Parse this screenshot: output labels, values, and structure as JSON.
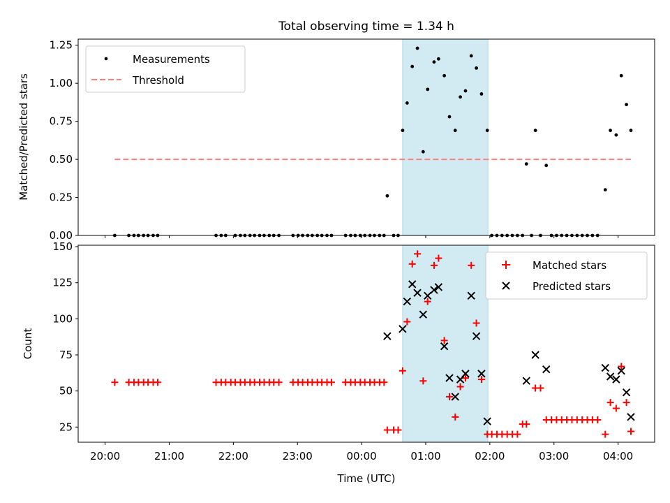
{
  "figure": {
    "title": "Total observing time = 1.34 h"
  },
  "colors": {
    "highlight": "#add8e6",
    "threshold": "#ff7f7f",
    "measurement": "#000000",
    "matched": "#ff0000",
    "predicted": "#000000"
  },
  "chart_data": [
    {
      "type": "scatter",
      "xlabel": "",
      "ylabel": "Matched/Predicted stars",
      "x_unit": "hours after 20:00 UTC",
      "xlim": [
        -0.42,
        8.57
      ],
      "ylim": [
        0,
        1.29
      ],
      "yticks": [
        0,
        0.25,
        0.5,
        0.75,
        1.0,
        1.25
      ],
      "ytick_labels": [
        "0.00",
        "0.25",
        "0.50",
        "0.75",
        "1.00",
        "1.25"
      ],
      "highlight_span": [
        4.64,
        5.97
      ],
      "legend": {
        "position": "upper-left",
        "entries": [
          "Measurements",
          "Threshold"
        ]
      },
      "threshold": {
        "name": "Threshold",
        "y": 0.5,
        "x_range": [
          0.15,
          8.2
        ]
      },
      "series": [
        {
          "name": "Measurements",
          "points": [
            [
              0.15,
              0
            ],
            [
              0.37,
              0
            ],
            [
              0.45,
              0
            ],
            [
              0.52,
              0
            ],
            [
              0.6,
              0
            ],
            [
              0.67,
              0
            ],
            [
              0.75,
              0
            ],
            [
              0.82,
              0
            ],
            [
              1.73,
              0
            ],
            [
              1.81,
              0
            ],
            [
              1.88,
              0
            ],
            [
              2.03,
              0
            ],
            [
              2.11,
              0
            ],
            [
              2.18,
              0
            ],
            [
              2.26,
              0
            ],
            [
              2.33,
              0
            ],
            [
              2.41,
              0
            ],
            [
              2.48,
              0
            ],
            [
              2.56,
              0
            ],
            [
              2.63,
              0
            ],
            [
              2.71,
              0
            ],
            [
              2.93,
              0
            ],
            [
              3.01,
              0
            ],
            [
              3.08,
              0
            ],
            [
              3.16,
              0
            ],
            [
              3.23,
              0
            ],
            [
              3.31,
              0
            ],
            [
              3.38,
              0
            ],
            [
              3.46,
              0
            ],
            [
              3.53,
              0
            ],
            [
              3.75,
              0
            ],
            [
              3.83,
              0
            ],
            [
              3.9,
              0
            ],
            [
              3.98,
              0
            ],
            [
              4.05,
              0
            ],
            [
              4.13,
              0
            ],
            [
              4.2,
              0
            ],
            [
              4.28,
              0
            ],
            [
              4.35,
              0
            ],
            [
              4.4,
              0.26
            ],
            [
              4.5,
              0
            ],
            [
              4.57,
              0
            ],
            [
              4.64,
              0.69
            ],
            [
              4.71,
              0.87
            ],
            [
              4.79,
              1.11
            ],
            [
              4.87,
              1.23
            ],
            [
              4.96,
              0.55
            ],
            [
              5.03,
              0.96
            ],
            [
              5.13,
              1.14
            ],
            [
              5.2,
              1.16
            ],
            [
              5.29,
              1.05
            ],
            [
              5.37,
              0.78
            ],
            [
              5.46,
              0.69
            ],
            [
              5.54,
              0.91
            ],
            [
              5.62,
              0.95
            ],
            [
              5.71,
              1.18
            ],
            [
              5.79,
              1.1
            ],
            [
              5.87,
              0.93
            ],
            [
              5.96,
              0.69
            ],
            [
              6.03,
              0
            ],
            [
              6.11,
              0
            ],
            [
              6.19,
              0
            ],
            [
              6.27,
              0
            ],
            [
              6.35,
              0
            ],
            [
              6.43,
              0
            ],
            [
              6.51,
              0
            ],
            [
              6.57,
              0.47
            ],
            [
              6.65,
              0
            ],
            [
              6.71,
              0.69
            ],
            [
              6.79,
              0
            ],
            [
              6.88,
              0.46
            ],
            [
              6.96,
              0
            ],
            [
              7.04,
              0
            ],
            [
              7.12,
              0
            ],
            [
              7.2,
              0
            ],
            [
              7.28,
              0
            ],
            [
              7.36,
              0
            ],
            [
              7.44,
              0
            ],
            [
              7.52,
              0
            ],
            [
              7.6,
              0
            ],
            [
              7.68,
              0
            ],
            [
              7.8,
              0.3
            ],
            [
              7.88,
              0.69
            ],
            [
              7.97,
              0.66
            ],
            [
              8.05,
              1.05
            ],
            [
              8.13,
              0.86
            ],
            [
              8.2,
              0.69
            ]
          ]
        }
      ]
    },
    {
      "type": "scatter",
      "xlabel": "Time (UTC)",
      "ylabel": "Count",
      "x_unit": "hours after 20:00 UTC",
      "xlim": [
        -0.42,
        8.57
      ],
      "ylim": [
        14.5,
        151
      ],
      "yticks": [
        25,
        50,
        75,
        100,
        125,
        150
      ],
      "ytick_labels": [
        "25",
        "50",
        "75",
        "100",
        "125",
        "150"
      ],
      "xticks": [
        0,
        1,
        2,
        3,
        4,
        5,
        6,
        7,
        8
      ],
      "xtick_labels": [
        "20:00",
        "21:00",
        "22:00",
        "23:00",
        "00:00",
        "01:00",
        "02:00",
        "03:00",
        "04:00"
      ],
      "highlight_span": [
        4.64,
        5.97
      ],
      "legend": {
        "position": "upper-right",
        "entries": [
          "Matched stars",
          "Predicted stars"
        ]
      },
      "series": [
        {
          "name": "Matched stars",
          "points": [
            [
              0.15,
              56
            ],
            [
              0.37,
              56
            ],
            [
              0.45,
              56
            ],
            [
              0.52,
              56
            ],
            [
              0.6,
              56
            ],
            [
              0.67,
              56
            ],
            [
              0.75,
              56
            ],
            [
              0.82,
              56
            ],
            [
              1.73,
              56
            ],
            [
              1.81,
              56
            ],
            [
              1.88,
              56
            ],
            [
              1.96,
              56
            ],
            [
              2.03,
              56
            ],
            [
              2.11,
              56
            ],
            [
              2.18,
              56
            ],
            [
              2.26,
              56
            ],
            [
              2.33,
              56
            ],
            [
              2.41,
              56
            ],
            [
              2.48,
              56
            ],
            [
              2.56,
              56
            ],
            [
              2.63,
              56
            ],
            [
              2.71,
              56
            ],
            [
              2.93,
              56
            ],
            [
              3.01,
              56
            ],
            [
              3.08,
              56
            ],
            [
              3.16,
              56
            ],
            [
              3.23,
              56
            ],
            [
              3.31,
              56
            ],
            [
              3.38,
              56
            ],
            [
              3.46,
              56
            ],
            [
              3.53,
              56
            ],
            [
              3.75,
              56
            ],
            [
              3.83,
              56
            ],
            [
              3.9,
              56
            ],
            [
              3.98,
              56
            ],
            [
              4.05,
              56
            ],
            [
              4.13,
              56
            ],
            [
              4.2,
              56
            ],
            [
              4.28,
              56
            ],
            [
              4.35,
              56
            ],
            [
              4.4,
              23
            ],
            [
              4.5,
              23
            ],
            [
              4.57,
              23
            ],
            [
              4.64,
              64
            ],
            [
              4.71,
              98
            ],
            [
              4.79,
              138
            ],
            [
              4.87,
              145
            ],
            [
              4.96,
              57
            ],
            [
              5.03,
              112
            ],
            [
              5.13,
              137
            ],
            [
              5.2,
              142
            ],
            [
              5.29,
              85
            ],
            [
              5.37,
              46
            ],
            [
              5.46,
              32
            ],
            [
              5.54,
              53
            ],
            [
              5.62,
              59
            ],
            [
              5.71,
              137
            ],
            [
              5.79,
              97
            ],
            [
              5.87,
              58
            ],
            [
              5.96,
              20
            ],
            [
              6.03,
              20
            ],
            [
              6.11,
              20
            ],
            [
              6.19,
              20
            ],
            [
              6.27,
              20
            ],
            [
              6.35,
              20
            ],
            [
              6.43,
              20
            ],
            [
              6.51,
              27
            ],
            [
              6.57,
              27
            ],
            [
              6.71,
              52
            ],
            [
              6.79,
              52
            ],
            [
              6.88,
              30
            ],
            [
              6.96,
              30
            ],
            [
              7.04,
              30
            ],
            [
              7.12,
              30
            ],
            [
              7.2,
              30
            ],
            [
              7.28,
              30
            ],
            [
              7.36,
              30
            ],
            [
              7.44,
              30
            ],
            [
              7.52,
              30
            ],
            [
              7.6,
              30
            ],
            [
              7.68,
              30
            ],
            [
              7.8,
              20
            ],
            [
              7.88,
              42
            ],
            [
              7.97,
              38
            ],
            [
              8.05,
              67
            ],
            [
              8.13,
              42
            ],
            [
              8.2,
              22
            ]
          ]
        },
        {
          "name": "Predicted stars",
          "points": [
            [
              4.4,
              88
            ],
            [
              4.64,
              93
            ],
            [
              4.71,
              112
            ],
            [
              4.79,
              124
            ],
            [
              4.87,
              118
            ],
            [
              4.96,
              103
            ],
            [
              5.03,
              116
            ],
            [
              5.13,
              120
            ],
            [
              5.2,
              122
            ],
            [
              5.29,
              81
            ],
            [
              5.37,
              59
            ],
            [
              5.46,
              46
            ],
            [
              5.54,
              58
            ],
            [
              5.62,
              62
            ],
            [
              5.71,
              116
            ],
            [
              5.79,
              88
            ],
            [
              5.87,
              62
            ],
            [
              5.96,
              29
            ],
            [
              6.57,
              57
            ],
            [
              6.71,
              75
            ],
            [
              6.88,
              65
            ],
            [
              7.8,
              66
            ],
            [
              7.88,
              60
            ],
            [
              7.97,
              58
            ],
            [
              8.05,
              64
            ],
            [
              8.13,
              49
            ],
            [
              8.2,
              32
            ]
          ]
        }
      ]
    }
  ]
}
